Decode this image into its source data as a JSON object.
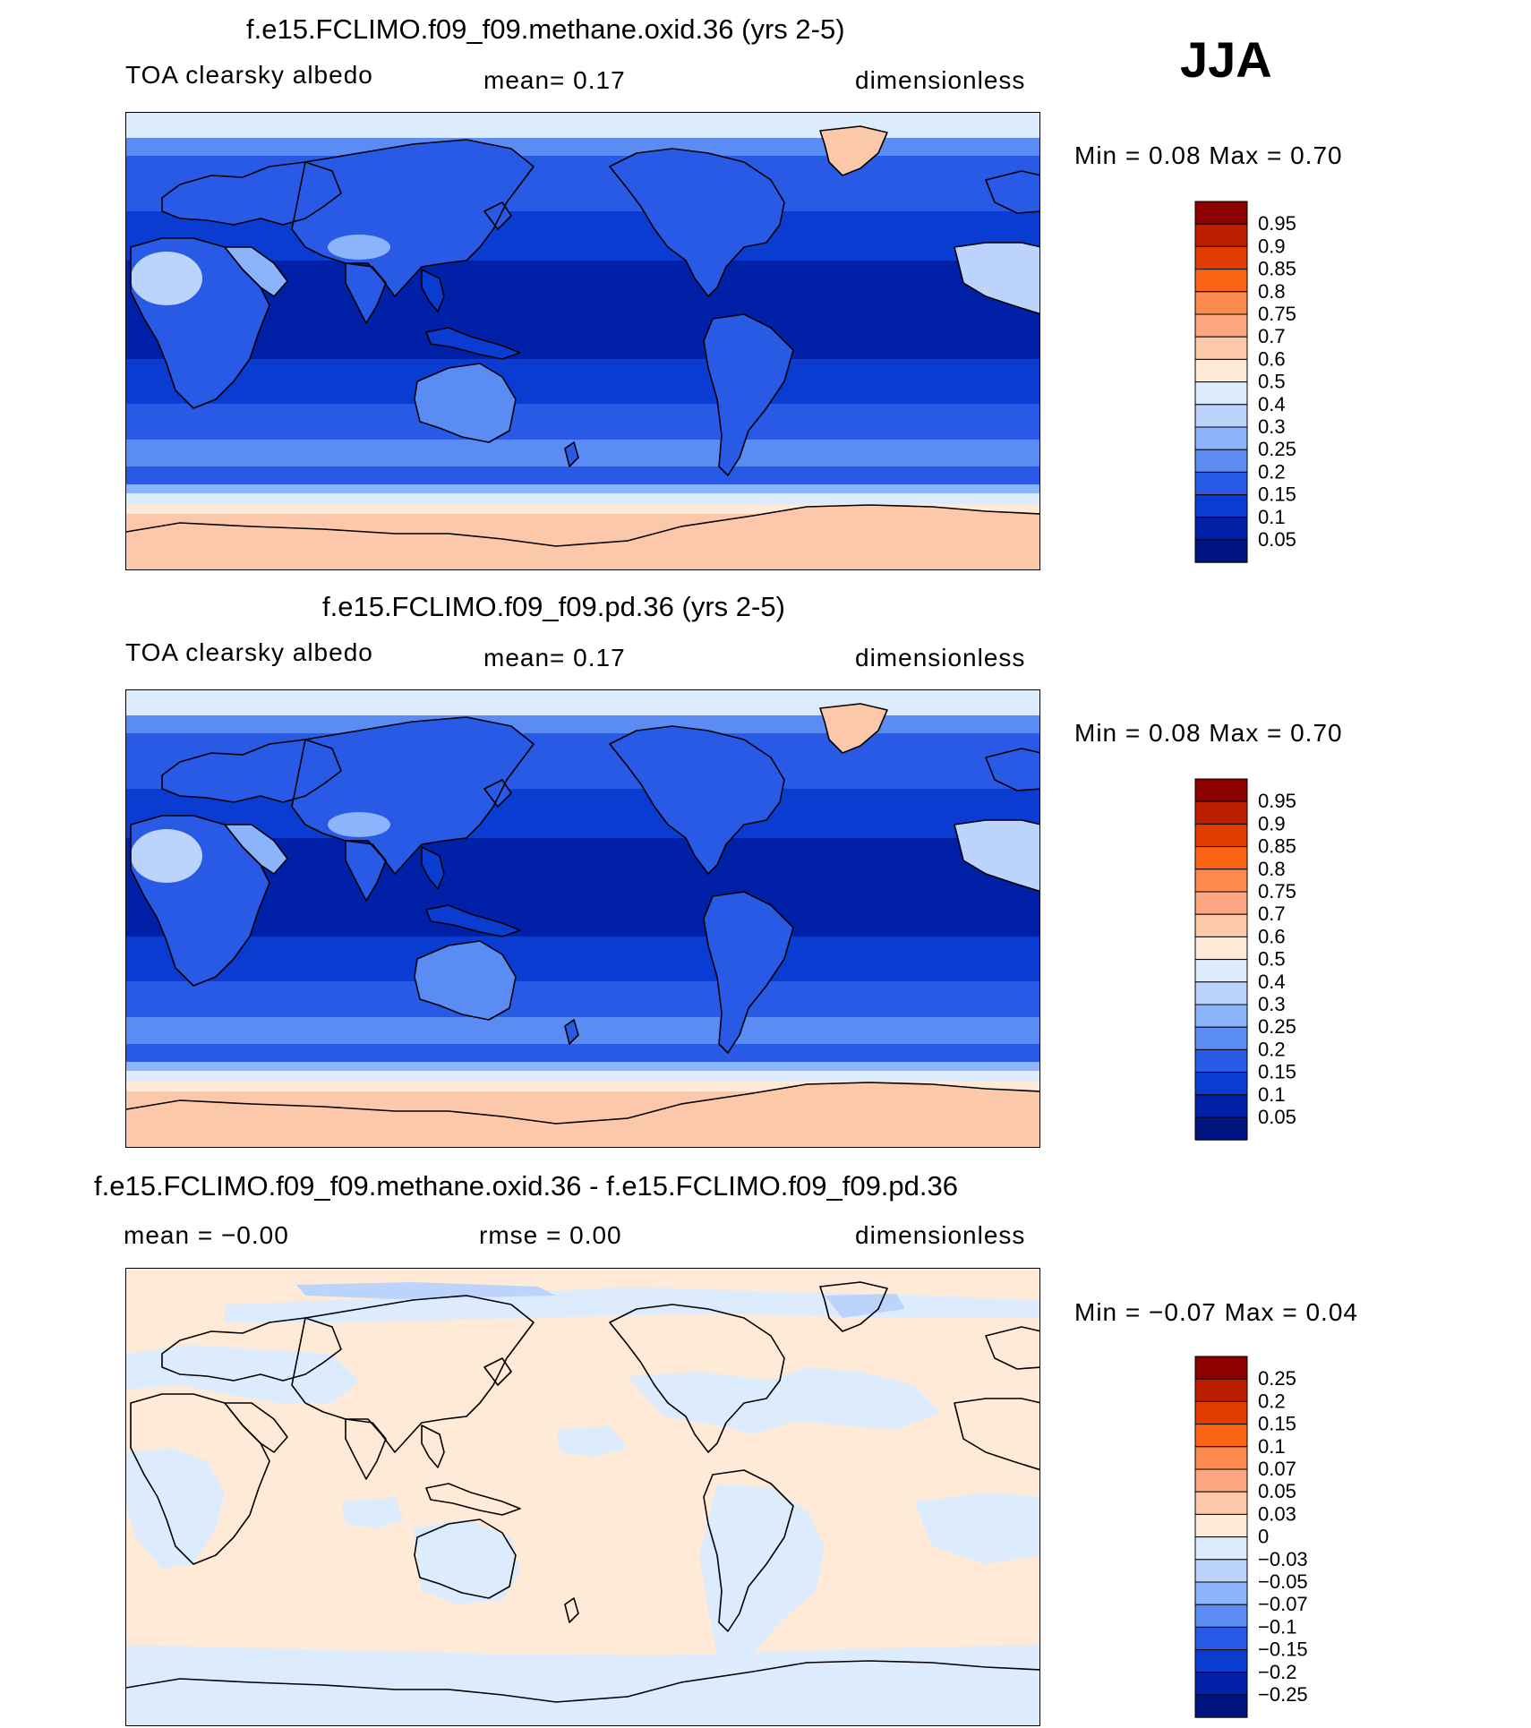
{
  "season": "JJA",
  "panels": [
    {
      "title": "f.e15.FCLIMO.f09_f09.methane.oxid.36 (yrs 2-5)",
      "left": "TOA clearsky albedo",
      "middle": "mean=    0.17",
      "right": "dimensionless",
      "minmax": "Min =     0.08  Max =     0.70",
      "map_kind": "abs",
      "legend_levels": [
        "0.95",
        "0.9",
        "0.85",
        "0.8",
        "0.75",
        "0.7",
        "0.6",
        "0.5",
        "0.4",
        "0.3",
        "0.25",
        "0.2",
        "0.15",
        "0.1",
        "0.05"
      ],
      "legend_colors": [
        "#8c0000",
        "#be1e00",
        "#e03c00",
        "#fa6414",
        "#fc8a4e",
        "#fca682",
        "#fcc8aa",
        "#feead6",
        "#dcecfc",
        "#bcd4fc",
        "#8cb4fc",
        "#5a8cf4",
        "#285ae6",
        "#0a3cd2",
        "#0020a8",
        "#001480"
      ]
    },
    {
      "title": "f.e15.FCLIMO.f09_f09.pd.36 (yrs 2-5)",
      "left": "TOA clearsky albedo",
      "middle": "mean=    0.17",
      "right": "dimensionless",
      "minmax": "Min =     0.08  Max =     0.70",
      "map_kind": "abs",
      "legend_levels": [
        "0.95",
        "0.9",
        "0.85",
        "0.8",
        "0.75",
        "0.7",
        "0.6",
        "0.5",
        "0.4",
        "0.3",
        "0.25",
        "0.2",
        "0.15",
        "0.1",
        "0.05"
      ],
      "legend_colors": [
        "#8c0000",
        "#be1e00",
        "#e03c00",
        "#fa6414",
        "#fc8a4e",
        "#fca682",
        "#fcc8aa",
        "#feead6",
        "#dcecfc",
        "#bcd4fc",
        "#8cb4fc",
        "#5a8cf4",
        "#285ae6",
        "#0a3cd2",
        "#0020a8",
        "#001480"
      ]
    },
    {
      "title": "f.e15.FCLIMO.f09_f09.methane.oxid.36 - f.e15.FCLIMO.f09_f09.pd.36",
      "left": "mean =   −0.00",
      "middle": "rmse =     0.00",
      "right": "dimensionless",
      "minmax": "Min =   −0.07  Max =     0.04",
      "map_kind": "diff",
      "legend_levels": [
        "0.25",
        "0.2",
        "0.15",
        "0.1",
        "0.07",
        "0.05",
        "0.03",
        "0",
        "−0.03",
        "−0.05",
        "−0.07",
        "−0.1",
        "−0.15",
        "−0.2",
        "−0.25"
      ],
      "legend_colors": [
        "#8c0000",
        "#be1e00",
        "#e03c00",
        "#fa6414",
        "#fc8a4e",
        "#fca682",
        "#fcc8aa",
        "#feead6",
        "#dcecfc",
        "#bcd4fc",
        "#8cb4fc",
        "#5a8cf4",
        "#285ae6",
        "#0a3cd2",
        "#0020a8",
        "#001480"
      ]
    }
  ]
}
